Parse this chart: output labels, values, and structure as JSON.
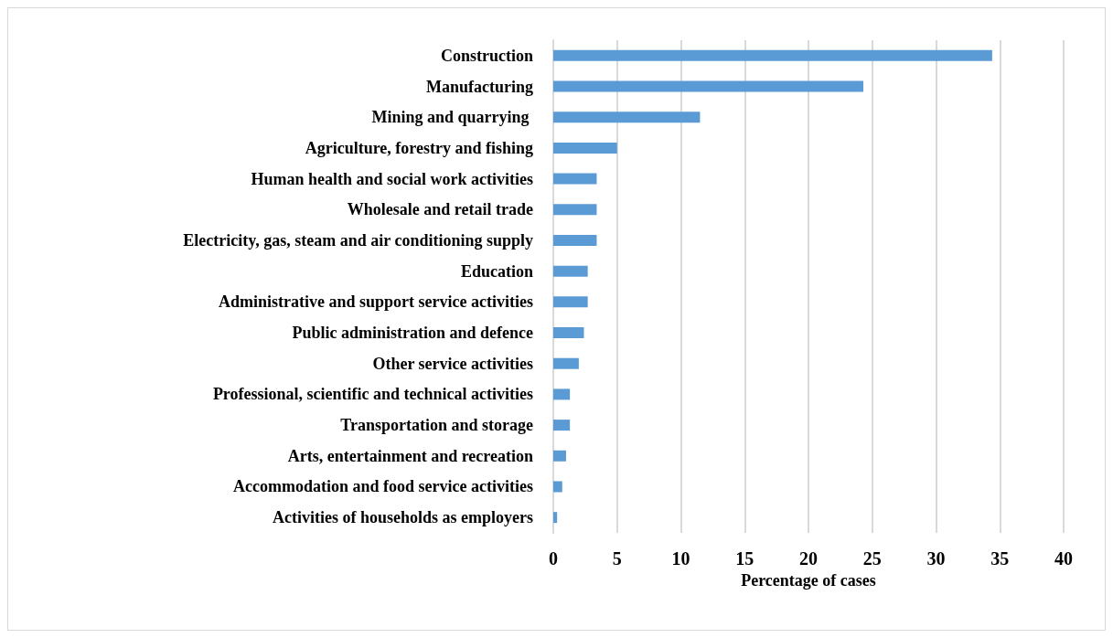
{
  "chart_data": {
    "type": "bar",
    "orientation": "horizontal",
    "xlabel": "Percentage of cases",
    "categories": [
      "Construction",
      "Manufacturing",
      "Mining and quarrying ",
      "Agriculture, forestry and fishing",
      "Human health and social work activities",
      "Wholesale and retail trade",
      "Electricity, gas, steam and air conditioning supply",
      "Education",
      "Administrative and support service activities",
      "Public administration and defence",
      "Other service activities",
      "Professional, scientific and technical activities",
      "Transportation and storage",
      "Arts, entertainment and recreation",
      "Accommodation and food service activities",
      "Activities of households as employers"
    ],
    "values": [
      34.4,
      24.3,
      11.5,
      5.0,
      3.4,
      3.4,
      3.4,
      2.7,
      2.7,
      2.4,
      2.0,
      1.3,
      1.3,
      1.0,
      0.7,
      0.3
    ],
    "color": "#5b9bd5",
    "xlim": [
      0,
      40
    ],
    "xticks": [
      0,
      5,
      10,
      15,
      20,
      25,
      30,
      35,
      40
    ],
    "grid": "x"
  }
}
